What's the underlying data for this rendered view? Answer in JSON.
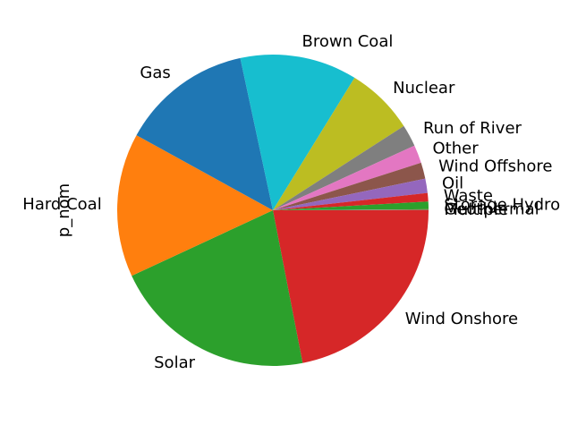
{
  "chart_data": {
    "type": "pie",
    "ylabel": "p_nom",
    "start_angle_deg": 0,
    "direction": "clockwise",
    "slices": [
      {
        "label": "Wind Onshore",
        "percent": 22.2,
        "color": "#d62728"
      },
      {
        "label": "Solar",
        "percent": 21.4,
        "color": "#2ca02c"
      },
      {
        "label": "Hard Coal",
        "percent": 15.1,
        "color": "#ff7f0e"
      },
      {
        "label": "Gas",
        "percent": 13.8,
        "color": "#1f77b4"
      },
      {
        "label": "Brown Coal",
        "percent": 12.3,
        "color": "#17becf"
      },
      {
        "label": "Nuclear",
        "percent": 7.2,
        "color": "#bcbd22"
      },
      {
        "label": "Run of River",
        "percent": 2.3,
        "color": "#7f7f7f"
      },
      {
        "label": "Other",
        "percent": 1.9,
        "color": "#e377c2"
      },
      {
        "label": "Wind Offshore",
        "percent": 1.7,
        "color": "#8c564b"
      },
      {
        "label": "Oil",
        "percent": 1.5,
        "color": "#9467bd"
      },
      {
        "label": "Waste",
        "percent": 0.9,
        "color": "#d62728"
      },
      {
        "label": "Storage Hydro",
        "percent": 0.8,
        "color": "#2ca02c"
      },
      {
        "label": "Geothermal",
        "percent": 0.05,
        "color": "#ff7f0e"
      },
      {
        "label": "Multiple",
        "percent": 0.05,
        "color": "#1f77b4"
      }
    ]
  }
}
